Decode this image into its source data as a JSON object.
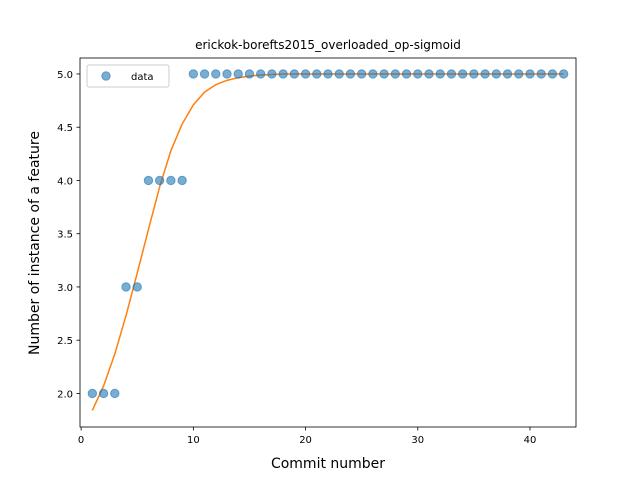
{
  "chart_data": {
    "type": "scatter",
    "title": "erickok-borefts2015_overloaded_op-sigmoid",
    "xlabel": "Commit number",
    "ylabel": "Number of instance of a feature",
    "xlim": [
      -0.1,
      44.1
    ],
    "ylim": [
      1.685,
      5.15
    ],
    "xticks": [
      0,
      10,
      20,
      30,
      40
    ],
    "yticks": [
      2.0,
      2.5,
      3.0,
      3.5,
      4.0,
      4.5,
      5.0
    ],
    "grid": false,
    "legend_position": "top-left",
    "series": [
      {
        "name": "data",
        "kind": "scatter",
        "color": "#1f77b4",
        "x": [
          1,
          2,
          3,
          4,
          5,
          6,
          7,
          8,
          9,
          10,
          11,
          12,
          13,
          14,
          15,
          16,
          17,
          18,
          19,
          20,
          21,
          22,
          23,
          24,
          25,
          26,
          27,
          28,
          29,
          30,
          31,
          32,
          33,
          34,
          35,
          36,
          37,
          38,
          39,
          40,
          41,
          42,
          43
        ],
        "y": [
          2,
          2,
          2,
          3,
          3,
          4,
          4,
          4,
          4,
          5,
          5,
          5,
          5,
          5,
          5,
          5,
          5,
          5,
          5,
          5,
          5,
          5,
          5,
          5,
          5,
          5,
          5,
          5,
          5,
          5,
          5,
          5,
          5,
          5,
          5,
          5,
          5,
          5,
          5,
          5,
          5,
          5,
          5
        ]
      },
      {
        "kind": "line",
        "color": "#ff7f0e",
        "x": [
          1,
          2,
          3,
          4,
          5,
          6,
          7,
          8,
          9,
          10,
          11,
          12,
          13,
          14,
          15,
          16,
          17,
          18,
          19,
          20,
          21,
          22,
          23,
          24,
          25,
          26,
          27,
          28,
          29,
          30,
          31,
          32,
          33,
          34,
          35,
          36,
          37,
          38,
          39,
          40,
          41,
          42,
          43
        ],
        "y": [
          1.84,
          2.07,
          2.37,
          2.73,
          3.13,
          3.54,
          3.94,
          4.28,
          4.53,
          4.71,
          4.83,
          4.9,
          4.94,
          4.965,
          4.98,
          4.99,
          4.995,
          5.0,
          5.0,
          5.0,
          5.0,
          5.0,
          5.0,
          5.0,
          5.0,
          5.0,
          5.0,
          5.0,
          5.0,
          5.0,
          5.0,
          5.0,
          5.0,
          5.0,
          5.0,
          5.0,
          5.0,
          5.0,
          5.0,
          5.0,
          5.0,
          5.0,
          5.0
        ]
      }
    ]
  }
}
